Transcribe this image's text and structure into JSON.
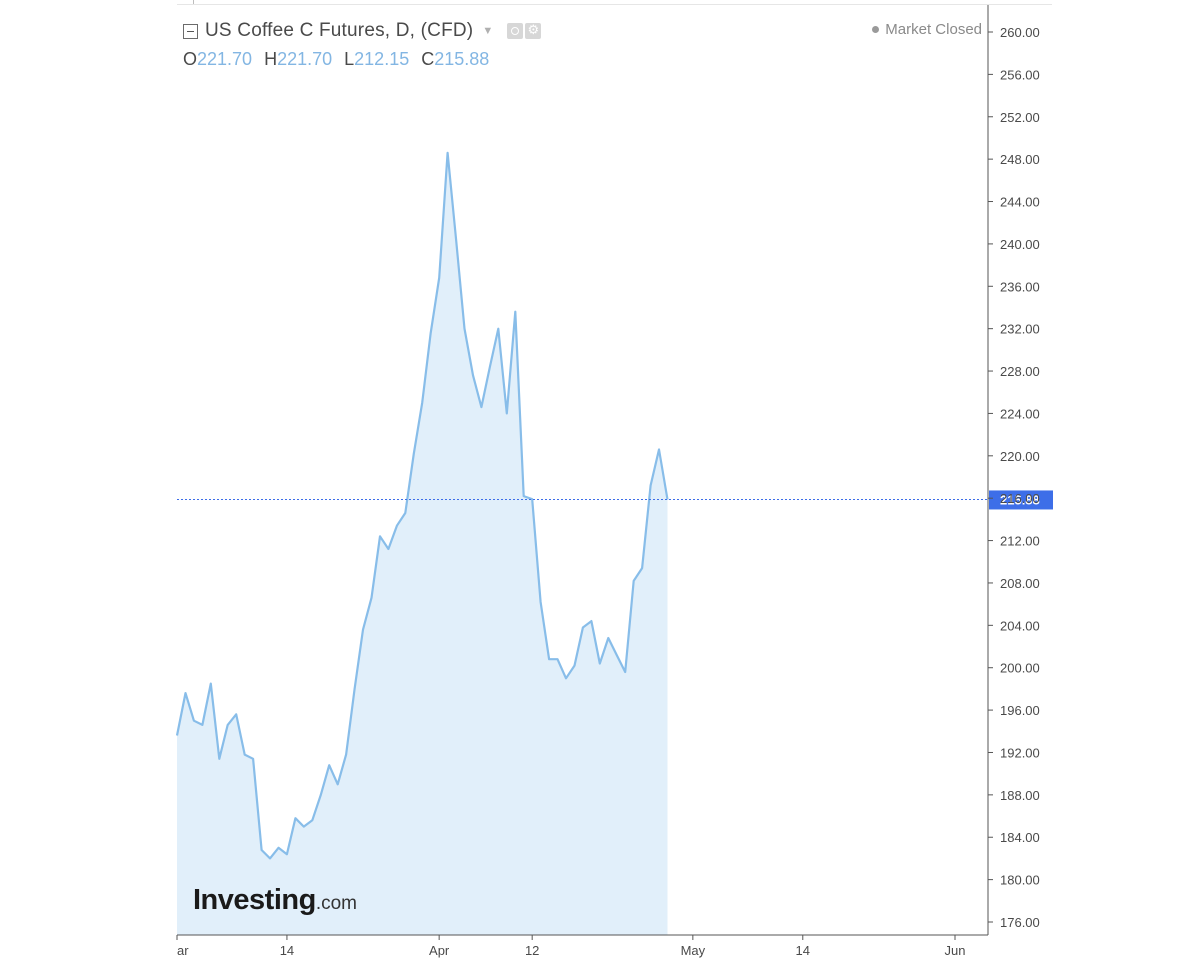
{
  "legend": {
    "title": "US Coffee C Futures, D, (CFD)",
    "ohlc": [
      {
        "key": "O",
        "value": "221.70"
      },
      {
        "key": "H",
        "value": "221.70"
      },
      {
        "key": "L",
        "value": "212.15"
      },
      {
        "key": "C",
        "value": "215.88"
      }
    ]
  },
  "market_status": "Market Closed",
  "logo": {
    "main": "Investing",
    "suffix": ".com"
  },
  "colors": {
    "line": "#88bde9",
    "area": "#e1effa",
    "price_line": "#3d6ee8",
    "price_label_bg": "#3d6ee8",
    "axis": "#555555",
    "text": "#4a4a4a"
  },
  "chart_data": {
    "type": "area",
    "title": "US Coffee C Futures, D, (CFD)",
    "ylim": [
      174.0,
      262.0
    ],
    "yticks": [
      "260.00",
      "256.00",
      "252.00",
      "248.00",
      "244.00",
      "240.00",
      "236.00",
      "232.00",
      "228.00",
      "224.00",
      "220.00",
      "216.00",
      "212.00",
      "208.00",
      "204.00",
      "200.00",
      "196.00",
      "192.00",
      "188.00",
      "184.00",
      "180.00",
      "176.00"
    ],
    "xlim": [
      "2018-03-01",
      "2018-06-04"
    ],
    "xticks": [
      {
        "label": "ar",
        "date": "2018-03-01"
      },
      {
        "label": "14",
        "date": "2018-03-14"
      },
      {
        "label": "Apr",
        "date": "2018-04-01"
      },
      {
        "label": "12",
        "date": "2018-04-12"
      },
      {
        "label": "May",
        "date": "2018-05-01"
      },
      {
        "label": "14",
        "date": "2018-05-14"
      },
      {
        "label": "Jun",
        "date": "2018-06-01"
      }
    ],
    "last_price": "215.88",
    "series": [
      {
        "x": [
          "2018-03-01",
          "2018-03-02",
          "2018-03-03",
          "2018-03-04",
          "2018-03-05",
          "2018-03-06",
          "2018-03-07",
          "2018-03-08",
          "2018-03-09",
          "2018-03-10",
          "2018-03-11",
          "2018-03-12",
          "2018-03-13",
          "2018-03-14",
          "2018-03-15",
          "2018-03-16",
          "2018-03-17",
          "2018-03-18",
          "2018-03-19",
          "2018-03-20",
          "2018-03-21",
          "2018-03-22",
          "2018-03-23",
          "2018-03-24",
          "2018-03-25",
          "2018-03-26",
          "2018-03-27",
          "2018-03-28",
          "2018-03-29",
          "2018-03-30",
          "2018-03-31",
          "2018-04-01",
          "2018-04-02",
          "2018-04-03",
          "2018-04-04",
          "2018-04-05",
          "2018-04-06",
          "2018-04-07",
          "2018-04-08",
          "2018-04-09",
          "2018-04-10",
          "2018-04-11",
          "2018-04-12",
          "2018-04-13",
          "2018-04-14",
          "2018-04-15",
          "2018-04-16",
          "2018-04-17",
          "2018-04-18",
          "2018-04-19",
          "2018-04-20",
          "2018-04-21",
          "2018-04-22",
          "2018-04-23",
          "2018-04-24",
          "2018-04-25",
          "2018-04-26",
          "2018-04-27",
          "2018-04-28",
          "2018-04-29",
          "2018-04-30",
          "2018-05-01",
          "2018-05-02",
          "2018-05-03",
          "2018-05-04",
          "2018-05-05",
          "2018-05-06",
          "2018-05-07",
          "2018-05-08",
          "2018-05-09",
          "2018-05-10",
          "2018-05-11",
          "2018-05-12",
          "2018-05-13",
          "2018-05-14",
          "2018-05-15",
          "2018-05-16",
          "2018-05-17",
          "2018-05-18",
          "2018-05-19",
          "2018-05-20",
          "2018-05-21",
          "2018-05-22",
          "2018-05-23",
          "2018-05-24",
          "2018-05-25",
          "2018-05-26",
          "2018-05-27",
          "2018-05-28",
          "2018-05-29",
          "2018-05-30",
          "2018-05-31",
          "2018-06-01"
        ],
        "values": [
          193.6,
          197.6,
          195.0,
          194.6,
          198.5,
          191.4,
          194.6,
          195.6,
          191.8,
          191.4,
          182.8,
          182.0,
          183.0,
          182.4,
          185.8,
          185.0,
          185.6,
          188.0,
          190.8,
          189.0,
          191.8,
          198.0,
          203.6,
          206.6,
          212.4,
          211.2,
          213.4,
          214.6,
          220.2,
          225.0,
          231.6,
          236.8,
          248.6,
          240.4,
          232.0,
          227.6,
          224.6,
          228.4,
          232.0,
          224.0,
          233.6,
          216.2,
          215.9,
          206.2,
          200.8,
          200.8,
          199.0,
          200.2,
          203.8,
          204.4,
          200.4,
          202.8,
          201.2,
          199.6,
          208.2,
          209.4,
          217.2,
          220.6,
          215.88,
          null,
          null,
          null,
          null,
          null,
          null,
          null,
          null,
          null,
          null,
          null,
          null,
          null,
          null,
          null,
          null,
          null,
          null,
          null,
          null,
          null,
          null,
          null,
          null,
          null,
          null,
          null,
          null,
          null,
          null,
          null,
          null,
          null,
          null
        ]
      }
    ]
  }
}
